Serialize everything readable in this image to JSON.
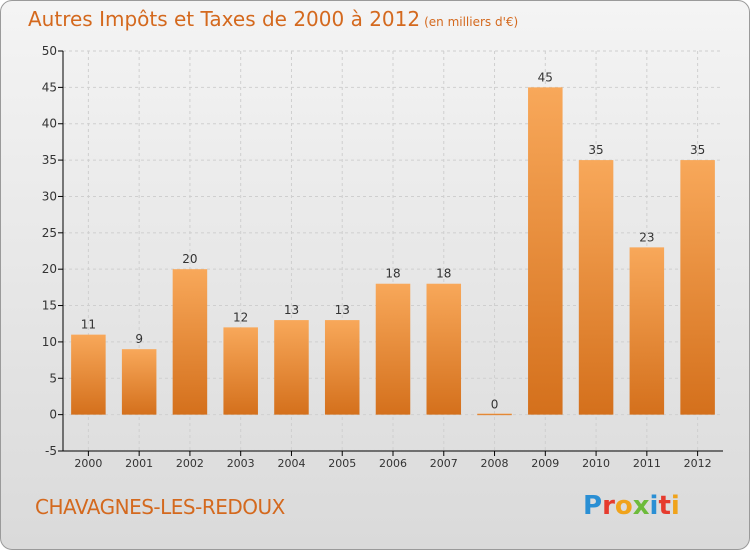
{
  "header": {
    "title": "Autres Impôts et Taxes de 2000 à 2012",
    "unit": "(en milliers d'€)"
  },
  "footer": {
    "commune": "CHAVAGNES-LES-REDOUX",
    "logo": "Proxiti",
    "logo_colors": [
      "#2a8fd4",
      "#e63b2e",
      "#f0a31b",
      "#6dbb3b",
      "#2a8fd4",
      "#e63b2e",
      "#f0a31b"
    ]
  },
  "chart_data": {
    "type": "bar",
    "title": "Autres Impôts et Taxes de 2000 à 2012",
    "subtitle": "(en milliers d'€)",
    "categories": [
      "2000",
      "2001",
      "2002",
      "2003",
      "2004",
      "2005",
      "2006",
      "2007",
      "2008",
      "2009",
      "2010",
      "2011",
      "2012"
    ],
    "values": [
      11,
      9,
      20,
      12,
      13,
      13,
      18,
      18,
      0,
      45,
      35,
      23,
      35
    ],
    "data_labels": [
      "11",
      "9",
      "20",
      "12",
      "13",
      "13",
      "18",
      "18",
      "0",
      "45",
      "35",
      "23",
      "35"
    ],
    "ylim": [
      -5,
      50
    ],
    "yticks": [
      "-5",
      "0",
      "5",
      "10",
      "15",
      "20",
      "25",
      "30",
      "35",
      "40",
      "45",
      "50"
    ],
    "grid": true,
    "bar_color_top": "#f8a85a",
    "bar_color_bottom": "#d4701c",
    "axis_color": "#000000",
    "grid_color": "#cfcfcf",
    "text_color": "#333333",
    "title_color": "#d4691e"
  }
}
